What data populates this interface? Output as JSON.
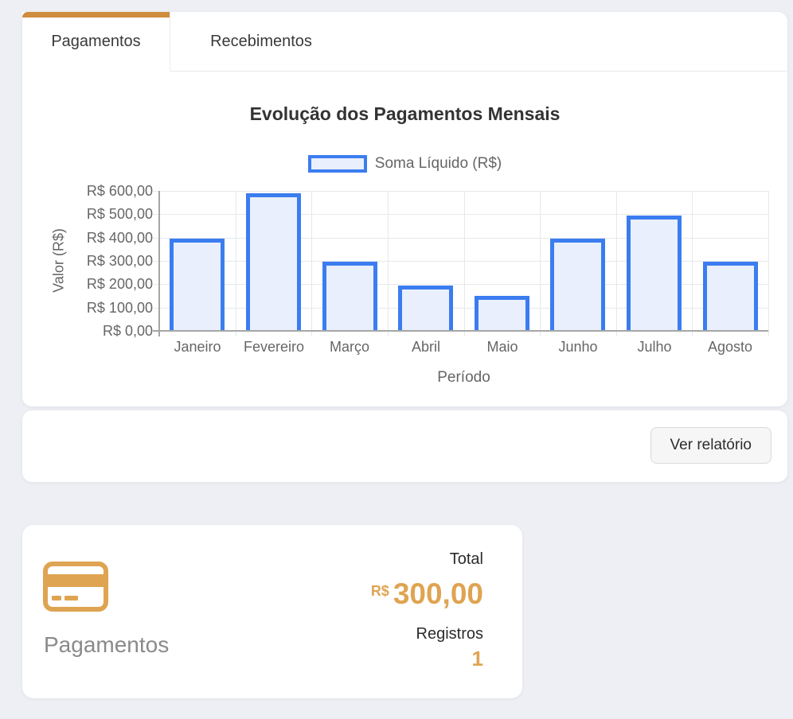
{
  "colors": {
    "page_background": "#edeff4",
    "accent_orange": "#dfa452",
    "accent_orange_dark": "#cf8d3e",
    "bar_border": "#3b7df0",
    "bar_fill": "#e9effc",
    "grid_line": "#e6e8eb",
    "axis_line": "#a6a6a6"
  },
  "tabs": [
    {
      "label": "Pagamentos",
      "active": true
    },
    {
      "label": "Recebimentos",
      "active": false
    }
  ],
  "chart_data": {
    "type": "bar",
    "title": "Evolução dos Pagamentos Mensais",
    "legend": "Soma Líquido (R$)",
    "legend_position": "top",
    "xlabel": "Período",
    "ylabel": "Valor (R$)",
    "categories": [
      "Janeiro",
      "Fevereiro",
      "Março",
      "Abril",
      "Maio",
      "Junho",
      "Julho",
      "Agosto"
    ],
    "values": [
      395,
      590,
      295,
      195,
      150,
      395,
      495,
      295
    ],
    "ylim": [
      0,
      600
    ],
    "ytick_step": 100,
    "ytick_labels": [
      "R$ 600,00",
      "R$ 500,00",
      "R$ 400,00",
      "R$ 300,00",
      "R$ 200,00",
      "R$ 100,00",
      "R$ 0,00"
    ],
    "grid": true,
    "series_name": "Soma Líquido (R$)"
  },
  "footer": {
    "button_label": "Ver relatório"
  },
  "summary": {
    "title": "Pagamentos",
    "icon": "credit-card",
    "total_label": "Total",
    "currency": "R$",
    "total_value": "300,00",
    "registros_label": "Registros",
    "registros_value": "1"
  }
}
